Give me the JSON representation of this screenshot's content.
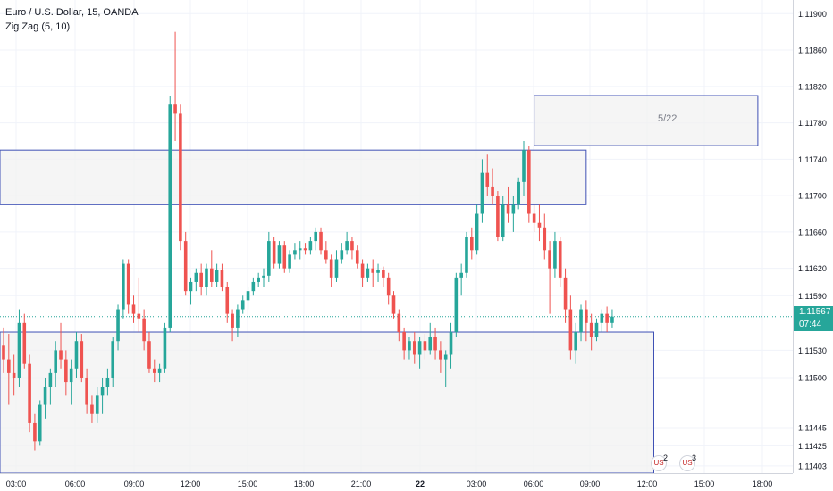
{
  "legend": {
    "symbol_line": "Euro / U.S. Dollar, 15, OANDA",
    "indicator_line": "Zig Zag (5, 10)"
  },
  "price_tag": {
    "price": "1.11567",
    "countdown": "07:44"
  },
  "rectangle_label": "5/22",
  "events": [
    {
      "icon": "us-flag-icon",
      "count": "2"
    },
    {
      "icon": "us-flag-icon",
      "count": "3"
    }
  ],
  "colors": {
    "up": "#26a69a",
    "down": "#ef5350",
    "box_border": "#3f51b5",
    "box_fill": "#f2f2f2",
    "grid": "#f0f3fa"
  },
  "chart_data": {
    "type": "candlestick",
    "title": "Euro / U.S. Dollar, 15, OANDA",
    "x_tick_labels": [
      "03:00",
      "06:00",
      "09:00",
      "12:00",
      "15:00",
      "18:00",
      "21:00",
      "22",
      "03:00",
      "06:00",
      "09:00",
      "12:00",
      "15:00",
      "18:00"
    ],
    "y_tick_labels": [
      "1.11900",
      "1.11860",
      "1.11820",
      "1.11780",
      "1.11740",
      "1.11700",
      "1.11660",
      "1.11620",
      "1.11590",
      "1.11567",
      "1.11530",
      "1.11500",
      "1.11445",
      "1.11425",
      "1.11403"
    ],
    "ylim": [
      1.11395,
      1.11915
    ],
    "current_price": 1.11567,
    "ohlc": [
      [
        1.11535,
        1.11555,
        1.11505,
        1.1152
      ],
      [
        1.1152,
        1.11548,
        1.1147,
        1.11505
      ],
      [
        1.11505,
        1.11525,
        1.1148,
        1.115
      ],
      [
        1.115,
        1.11575,
        1.1149,
        1.1156
      ],
      [
        1.1156,
        1.1157,
        1.1151,
        1.11515
      ],
      [
        1.11515,
        1.11525,
        1.1144,
        1.1145
      ],
      [
        1.1145,
        1.1146,
        1.1142,
        1.1143
      ],
      [
        1.1143,
        1.11475,
        1.11425,
        1.1147
      ],
      [
        1.1147,
        1.115,
        1.11455,
        1.1149
      ],
      [
        1.1149,
        1.1151,
        1.1147,
        1.11505
      ],
      [
        1.11505,
        1.1154,
        1.1149,
        1.1153
      ],
      [
        1.1153,
        1.1156,
        1.1151,
        1.1152
      ],
      [
        1.1152,
        1.1153,
        1.1148,
        1.11495
      ],
      [
        1.11495,
        1.1152,
        1.1147,
        1.1151
      ],
      [
        1.1151,
        1.1155,
        1.115,
        1.1154
      ],
      [
        1.1154,
        1.11548,
        1.11495,
        1.115
      ],
      [
        1.115,
        1.1151,
        1.1146,
        1.1147
      ],
      [
        1.1147,
        1.1148,
        1.1145,
        1.1146
      ],
      [
        1.1146,
        1.1149,
        1.1145,
        1.1148
      ],
      [
        1.1148,
        1.115,
        1.1146,
        1.1149
      ],
      [
        1.1149,
        1.1151,
        1.1148,
        1.115
      ],
      [
        1.115,
        1.11545,
        1.1149,
        1.1154
      ],
      [
        1.1154,
        1.1158,
        1.1153,
        1.11575
      ],
      [
        1.11575,
        1.1163,
        1.11565,
        1.11625
      ],
      [
        1.11625,
        1.1163,
        1.1157,
        1.1158
      ],
      [
        1.1158,
        1.1159,
        1.1156,
        1.1157
      ],
      [
        1.1157,
        1.1161,
        1.1155,
        1.11565
      ],
      [
        1.11565,
        1.11575,
        1.1153,
        1.1154
      ],
      [
        1.1154,
        1.1155,
        1.11505,
        1.1151
      ],
      [
        1.1151,
        1.1152,
        1.11495,
        1.11505
      ],
      [
        1.11505,
        1.11515,
        1.11495,
        1.1151
      ],
      [
        1.1151,
        1.1156,
        1.11505,
        1.11555
      ],
      [
        1.11555,
        1.1181,
        1.1155,
        1.118
      ],
      [
        1.118,
        1.1188,
        1.1176,
        1.1179
      ],
      [
        1.1179,
        1.118,
        1.1164,
        1.1165
      ],
      [
        1.1165,
        1.1166,
        1.1159,
        1.11595
      ],
      [
        1.11595,
        1.1161,
        1.1158,
        1.11605
      ],
      [
        1.11605,
        1.1162,
        1.11595,
        1.11615
      ],
      [
        1.11615,
        1.11625,
        1.1159,
        1.116
      ],
      [
        1.116,
        1.11625,
        1.1159,
        1.1162
      ],
      [
        1.1162,
        1.1164,
        1.116,
        1.11605
      ],
      [
        1.11605,
        1.11625,
        1.116,
        1.11618
      ],
      [
        1.11618,
        1.11625,
        1.11595,
        1.116
      ],
      [
        1.116,
        1.11605,
        1.1156,
        1.1157
      ],
      [
        1.1157,
        1.11575,
        1.1154,
        1.11555
      ],
      [
        1.11555,
        1.1158,
        1.11545,
        1.11575
      ],
      [
        1.11575,
        1.1159,
        1.1157,
        1.11585
      ],
      [
        1.11585,
        1.116,
        1.11575,
        1.11595
      ],
      [
        1.11595,
        1.1161,
        1.1159,
        1.11605
      ],
      [
        1.11605,
        1.11615,
        1.116,
        1.1161
      ],
      [
        1.1161,
        1.1162,
        1.116,
        1.11612
      ],
      [
        1.11612,
        1.1166,
        1.11605,
        1.1165
      ],
      [
        1.1165,
        1.11655,
        1.1162,
        1.11625
      ],
      [
        1.11625,
        1.1165,
        1.1162,
        1.11645
      ],
      [
        1.11645,
        1.1165,
        1.11615,
        1.1162
      ],
      [
        1.1162,
        1.1164,
        1.11615,
        1.11635
      ],
      [
        1.11635,
        1.11648,
        1.1163,
        1.1164
      ],
      [
        1.1164,
        1.1165,
        1.1163,
        1.11642
      ],
      [
        1.11642,
        1.11648,
        1.11635,
        1.1164
      ],
      [
        1.1164,
        1.11655,
        1.11635,
        1.1165
      ],
      [
        1.1165,
        1.11665,
        1.1164,
        1.1166
      ],
      [
        1.1166,
        1.11665,
        1.11635,
        1.1164
      ],
      [
        1.1164,
        1.1165,
        1.11625,
        1.1163
      ],
      [
        1.1163,
        1.11635,
        1.116,
        1.1161
      ],
      [
        1.1161,
        1.1164,
        1.11605,
        1.1163
      ],
      [
        1.1163,
        1.11648,
        1.11625,
        1.1164
      ],
      [
        1.1164,
        1.1166,
        1.11635,
        1.1165
      ],
      [
        1.1165,
        1.11655,
        1.1163,
        1.1164
      ],
      [
        1.1164,
        1.11645,
        1.1162,
        1.11625
      ],
      [
        1.11625,
        1.1163,
        1.116,
        1.1161
      ],
      [
        1.1161,
        1.11625,
        1.11605,
        1.1162
      ],
      [
        1.1162,
        1.1163,
        1.116,
        1.11615
      ],
      [
        1.11615,
        1.11625,
        1.11605,
        1.11618
      ],
      [
        1.11618,
        1.11622,
        1.116,
        1.1161
      ],
      [
        1.1161,
        1.11615,
        1.1158,
        1.1159
      ],
      [
        1.1159,
        1.11595,
        1.11565,
        1.1157
      ],
      [
        1.1157,
        1.11575,
        1.1154,
        1.1155
      ],
      [
        1.1155,
        1.11555,
        1.1152,
        1.1153
      ],
      [
        1.1153,
        1.11545,
        1.1152,
        1.1154
      ],
      [
        1.1154,
        1.1155,
        1.11515,
        1.11525
      ],
      [
        1.11525,
        1.11545,
        1.1151,
        1.1154
      ],
      [
        1.1154,
        1.11548,
        1.1152,
        1.1153
      ],
      [
        1.1153,
        1.1156,
        1.11525,
        1.11545
      ],
      [
        1.11545,
        1.11555,
        1.1152,
        1.1153
      ],
      [
        1.1153,
        1.1154,
        1.11505,
        1.1152
      ],
      [
        1.1152,
        1.1153,
        1.1149,
        1.11525
      ],
      [
        1.11525,
        1.1156,
        1.1151,
        1.1155
      ],
      [
        1.1155,
        1.11615,
        1.11545,
        1.1161
      ],
      [
        1.1161,
        1.11625,
        1.1159,
        1.11615
      ],
      [
        1.11615,
        1.1166,
        1.1161,
        1.11655
      ],
      [
        1.11655,
        1.11665,
        1.1163,
        1.1164
      ],
      [
        1.1164,
        1.1169,
        1.11635,
        1.1168
      ],
      [
        1.1168,
        1.1174,
        1.1167,
        1.11725
      ],
      [
        1.11725,
        1.11745,
        1.117,
        1.1171
      ],
      [
        1.1171,
        1.1173,
        1.1169,
        1.117
      ],
      [
        1.117,
        1.11705,
        1.1165,
        1.11655
      ],
      [
        1.11655,
        1.117,
        1.1165,
        1.1169
      ],
      [
        1.1169,
        1.1171,
        1.1167,
        1.1168
      ],
      [
        1.1168,
        1.117,
        1.1166,
        1.1169
      ],
      [
        1.1169,
        1.1172,
        1.11685,
        1.11715
      ],
      [
        1.11715,
        1.1176,
        1.117,
        1.1175
      ],
      [
        1.1175,
        1.11755,
        1.1167,
        1.1168
      ],
      [
        1.1168,
        1.1169,
        1.1166,
        1.1167
      ],
      [
        1.1167,
        1.1169,
        1.1165,
        1.11665
      ],
      [
        1.11665,
        1.1168,
        1.1163,
        1.1164
      ],
      [
        1.1164,
        1.1165,
        1.1157,
        1.1162
      ],
      [
        1.1162,
        1.1166,
        1.1161,
        1.1165
      ],
      [
        1.1165,
        1.11655,
        1.116,
        1.1161
      ],
      [
        1.1161,
        1.1162,
        1.1156,
        1.11575
      ],
      [
        1.11575,
        1.1159,
        1.1152,
        1.1153
      ],
      [
        1.1153,
        1.1156,
        1.11515,
        1.1155
      ],
      [
        1.1155,
        1.1158,
        1.1154,
        1.11575
      ],
      [
        1.11575,
        1.11585,
        1.1154,
        1.1156
      ],
      [
        1.1156,
        1.1157,
        1.1153,
        1.11545
      ],
      [
        1.11545,
        1.11565,
        1.1154,
        1.1156
      ],
      [
        1.1156,
        1.11575,
        1.1155,
        1.1157
      ],
      [
        1.1157,
        1.11578,
        1.1155,
        1.1156
      ],
      [
        1.1156,
        1.11575,
        1.11555,
        1.11567
      ]
    ],
    "boxes": [
      {
        "name": "resistance-zone",
        "top": 1.1175,
        "bottom": 1.1169,
        "x_start_bar": -1,
        "x_end_bar": 112
      },
      {
        "name": "support-zone",
        "top": 1.1155,
        "bottom": 1.11395,
        "x_start_bar": -1,
        "x_end_bar": 125
      },
      {
        "name": "date-zone",
        "top": 1.1181,
        "bottom": 1.11755,
        "x_start_bar": 102,
        "x_end_bar": 145
      }
    ],
    "grid": true,
    "legend": "top-left"
  }
}
